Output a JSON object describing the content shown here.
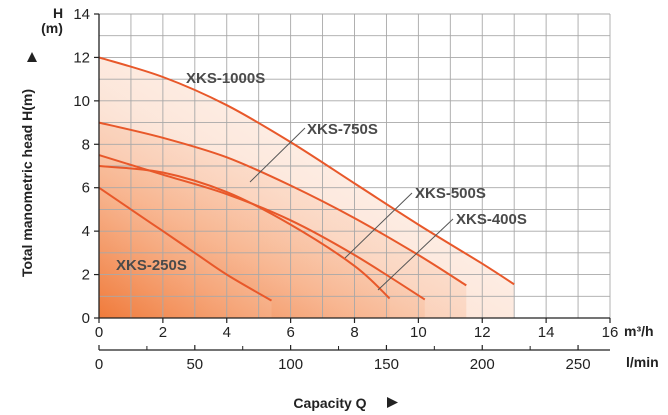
{
  "chart_data": {
    "type": "line",
    "xlabel": "Capacity Q",
    "ylabel": "Total manometric head H(m)",
    "y_unit_line1": "H",
    "y_unit_line2": "(m)",
    "x_unit": "m³/h",
    "x2_unit": "l/min",
    "xlim": [
      0,
      16
    ],
    "ylim": [
      0,
      14
    ],
    "x2lim": [
      0,
      266.67
    ],
    "x_ticks": [
      "0",
      "2",
      "4",
      "6",
      "8",
      "10",
      "12",
      "14",
      "16"
    ],
    "y_ticks": [
      "0",
      "2",
      "4",
      "6",
      "8",
      "10",
      "12",
      "14"
    ],
    "x2_ticks": [
      "0",
      "50",
      "100",
      "150",
      "200",
      "250"
    ],
    "grid": true,
    "line_color": "#e8582a",
    "fill_color": "#f07a3a",
    "series": [
      {
        "name": "XKS-1000S",
        "x": [
          0,
          2,
          4,
          6,
          8,
          10,
          12,
          13
        ],
        "y": [
          12.0,
          11.1,
          9.8,
          8.1,
          6.2,
          4.3,
          2.5,
          1.55
        ]
      },
      {
        "name": "XKS-750S",
        "x": [
          0,
          2,
          4,
          6,
          8,
          10,
          11.5
        ],
        "y": [
          9.0,
          8.3,
          7.4,
          6.1,
          4.6,
          2.9,
          1.5
        ]
      },
      {
        "name": "XKS-500S",
        "x": [
          0,
          2,
          4,
          6,
          8,
          10.2
        ],
        "y": [
          7.5,
          6.6,
          5.7,
          4.5,
          2.9,
          0.85
        ]
      },
      {
        "name": "XKS-400S",
        "x": [
          0,
          2,
          4,
          6,
          8,
          9.1
        ],
        "y": [
          7.0,
          6.7,
          5.8,
          4.3,
          2.4,
          0.9
        ]
      },
      {
        "name": "XKS-250S",
        "x": [
          0,
          1,
          2,
          3,
          4,
          5.4
        ],
        "y": [
          6.0,
          5.0,
          4.0,
          3.0,
          2.0,
          0.8
        ]
      }
    ]
  }
}
